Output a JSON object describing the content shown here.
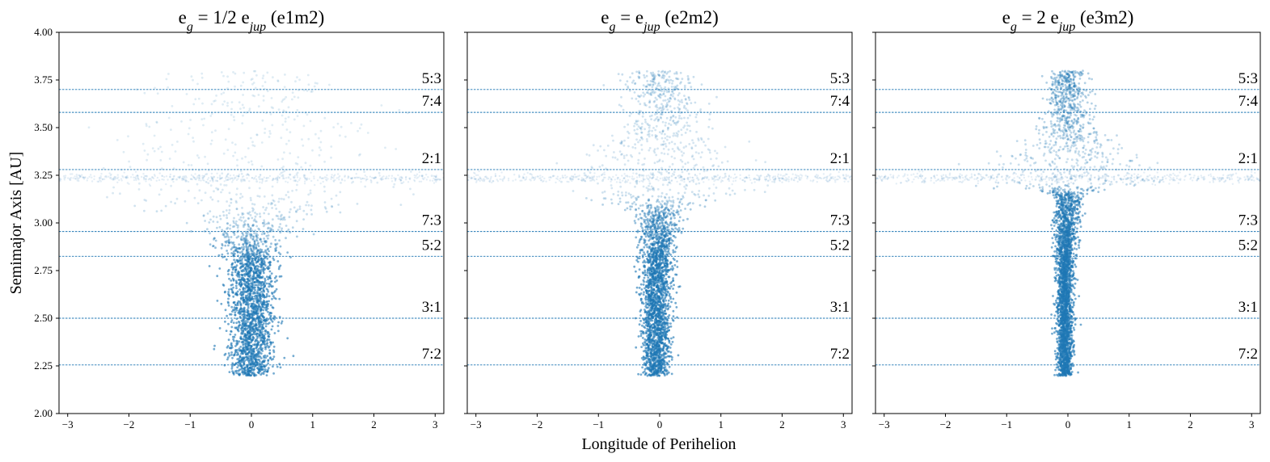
{
  "figure": {
    "ylabel": "Semimajor Axis [AU]",
    "xlabel": "Longitude of Perihelion"
  },
  "chart_data": [
    {
      "type": "scatter",
      "title": {
        "main": "e",
        "sub1": "g",
        "mid": " = 1/2 e",
        "sub2": "jup",
        "tail": " (e1m2)"
      },
      "xlim": [
        -3.14159,
        3.14159
      ],
      "ylim": [
        2.0,
        4.0
      ],
      "xticks": [
        -3,
        -2,
        -1,
        0,
        1,
        2,
        3
      ],
      "xtick_labels": [
        "−3",
        "−2",
        "−1",
        "0",
        "1",
        "2",
        "3"
      ],
      "yticks": [
        2.0,
        2.25,
        2.5,
        2.75,
        3.0,
        3.25,
        3.5,
        3.75,
        4.0
      ],
      "ytick_labels": [
        "2.00",
        "2.25",
        "2.50",
        "2.75",
        "3.00",
        "3.25",
        "3.50",
        "3.75",
        "4.00"
      ],
      "resonances": [
        {
          "label": "5:3",
          "a": 3.7
        },
        {
          "label": "7:4",
          "a": 3.58
        },
        {
          "label": "2:1",
          "a": 3.28
        },
        {
          "label": "7:3",
          "a": 2.955
        },
        {
          "label": "5:2",
          "a": 2.825
        },
        {
          "label": "3:1",
          "a": 2.5
        },
        {
          "label": "7:2",
          "a": 2.255
        }
      ],
      "density_profile": [
        {
          "a": 2.2,
          "center": 0.0,
          "spread": 0.18,
          "weight": 1.0
        },
        {
          "a": 2.45,
          "center": 0.0,
          "spread": 0.18,
          "weight": 1.0
        },
        {
          "a": 2.55,
          "center": 0.0,
          "spread": 0.2,
          "weight": 1.0
        },
        {
          "a": 2.8,
          "center": 0.0,
          "spread": 0.18,
          "weight": 1.0
        },
        {
          "a": 3.0,
          "center": 0.0,
          "spread": 0.35,
          "weight": 0.55
        },
        {
          "a": 3.2,
          "center": 0.0,
          "spread": 1.4,
          "weight": 0.25
        },
        {
          "a": 3.5,
          "center": 0.0,
          "spread": 1.0,
          "weight": 0.2
        },
        {
          "a": 3.8,
          "center": 0.0,
          "spread": 0.6,
          "weight": 0.2
        }
      ]
    },
    {
      "type": "scatter",
      "title": {
        "main": "e",
        "sub1": "g",
        "mid": " = e",
        "sub2": "jup",
        "tail": " (e2m2)"
      },
      "xlim": [
        -3.14159,
        3.14159
      ],
      "ylim": [
        2.0,
        4.0
      ],
      "xticks": [
        -3,
        -2,
        -1,
        0,
        1,
        2,
        3
      ],
      "xtick_labels": [
        "−3",
        "−2",
        "−1",
        "0",
        "1",
        "2",
        "3"
      ],
      "resonances": [
        {
          "label": "5:3",
          "a": 3.7
        },
        {
          "label": "7:4",
          "a": 3.58
        },
        {
          "label": "2:1",
          "a": 3.28
        },
        {
          "label": "7:3",
          "a": 2.955
        },
        {
          "label": "5:2",
          "a": 2.825
        },
        {
          "label": "3:1",
          "a": 2.5
        },
        {
          "label": "7:2",
          "a": 2.255
        }
      ],
      "density_profile": [
        {
          "a": 2.2,
          "center": -0.05,
          "spread": 0.1,
          "weight": 1.0
        },
        {
          "a": 2.5,
          "center": -0.05,
          "spread": 0.12,
          "weight": 1.0
        },
        {
          "a": 2.8,
          "center": -0.05,
          "spread": 0.12,
          "weight": 1.0
        },
        {
          "a": 3.05,
          "center": 0.0,
          "spread": 0.18,
          "weight": 0.8
        },
        {
          "a": 3.2,
          "center": 0.0,
          "spread": 0.9,
          "weight": 0.3
        },
        {
          "a": 3.5,
          "center": 0.0,
          "spread": 0.35,
          "weight": 0.4
        },
        {
          "a": 3.8,
          "center": 0.0,
          "spread": 0.25,
          "weight": 0.5
        }
      ]
    },
    {
      "type": "scatter",
      "title": {
        "main": "e",
        "sub1": "g",
        "mid": " = 2 e",
        "sub2": "jup",
        "tail": " (e3m2)"
      },
      "xlim": [
        -3.14159,
        3.14159
      ],
      "ylim": [
        2.0,
        4.0
      ],
      "xticks": [
        -3,
        -2,
        -1,
        0,
        1,
        2,
        3
      ],
      "xtick_labels": [
        "−3",
        "−2",
        "−1",
        "0",
        "1",
        "2",
        "3"
      ],
      "resonances": [
        {
          "label": "5:3",
          "a": 3.7
        },
        {
          "label": "7:4",
          "a": 3.58
        },
        {
          "label": "2:1",
          "a": 3.28
        },
        {
          "label": "7:3",
          "a": 2.955
        },
        {
          "label": "5:2",
          "a": 2.825
        },
        {
          "label": "3:1",
          "a": 2.5
        },
        {
          "label": "7:2",
          "a": 2.255
        }
      ],
      "density_profile": [
        {
          "a": 2.2,
          "center": -0.05,
          "spread": 0.06,
          "weight": 1.0
        },
        {
          "a": 2.5,
          "center": -0.05,
          "spread": 0.07,
          "weight": 1.0
        },
        {
          "a": 2.8,
          "center": -0.05,
          "spread": 0.07,
          "weight": 1.0
        },
        {
          "a": 3.15,
          "center": 0.0,
          "spread": 0.12,
          "weight": 0.9
        },
        {
          "a": 3.22,
          "center": 0.0,
          "spread": 0.8,
          "weight": 0.4
        },
        {
          "a": 3.5,
          "center": 0.0,
          "spread": 0.2,
          "weight": 0.6
        },
        {
          "a": 3.8,
          "center": 0.0,
          "spread": 0.15,
          "weight": 0.7
        }
      ]
    }
  ],
  "colors": {
    "points": "#1f77b4",
    "resonance_lines": "#1f77b4",
    "axes": "#000000"
  }
}
